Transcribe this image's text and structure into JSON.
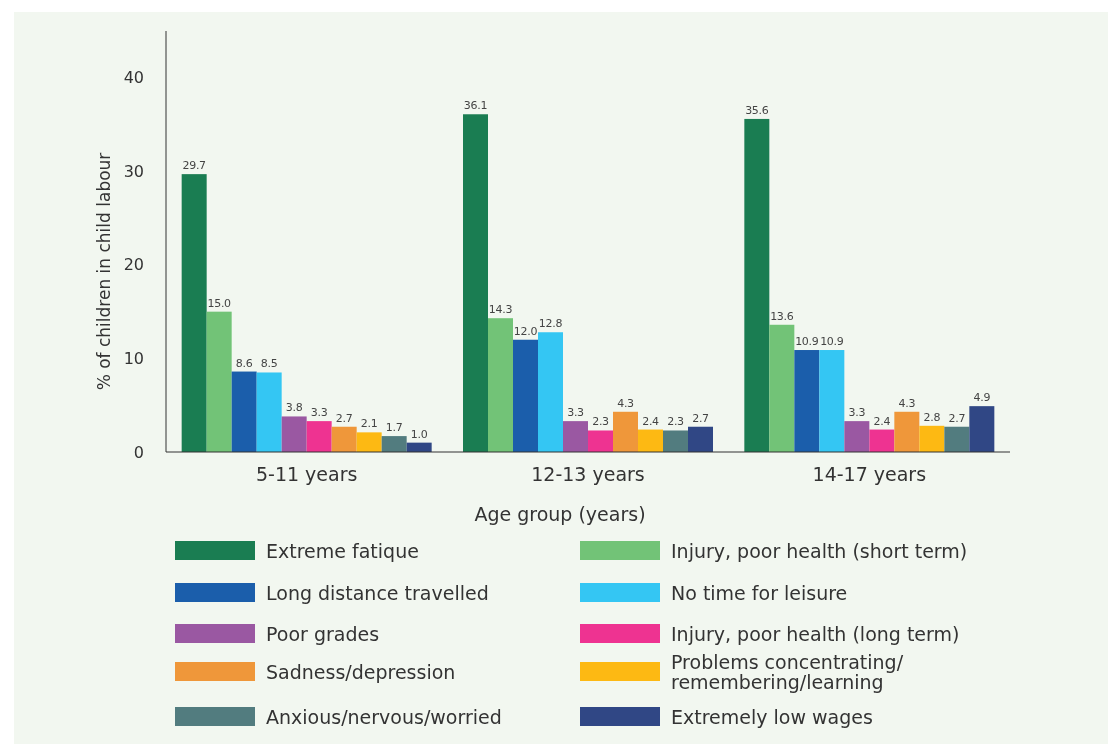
{
  "chart_data": {
    "type": "bar",
    "xlabel": "Age group (years)",
    "ylabel": "% of children in child labour",
    "categories": [
      "5-11 years",
      "12-13 years",
      "14-17 years"
    ],
    "series": [
      {
        "name": "Extreme fatique",
        "color": "#1a7d52",
        "values": [
          29.7,
          36.1,
          35.6
        ],
        "value_labels": [
          "29.7",
          "36.1",
          "35.6"
        ]
      },
      {
        "name": "Injury, poor health (short term)",
        "color": "#72c377",
        "values": [
          15,
          14.3,
          13.6
        ],
        "value_labels": [
          "15.0",
          "14.3",
          "13.6"
        ]
      },
      {
        "name": "Long distance travelled",
        "color": "#1b5eab",
        "values": [
          8.6,
          12,
          10.9
        ],
        "value_labels": [
          "8.6",
          "12.0",
          "10.9"
        ]
      },
      {
        "name": "No time for leisure",
        "color": "#34c6f3",
        "values": [
          8.5,
          12.8,
          10.9
        ],
        "value_labels": [
          "8.5",
          "12.8",
          "10.9"
        ]
      },
      {
        "name": "Poor grades",
        "color": "#9a58a2",
        "values": [
          3.8,
          3.3,
          3.3
        ],
        "value_labels": [
          "3.8",
          "3.3",
          "3.3"
        ]
      },
      {
        "name": "Injury, poor health (long term)",
        "color": "#ee3391",
        "values": [
          3.3,
          2.3,
          2.4
        ],
        "value_labels": [
          "3.3",
          "2.3",
          "2.4"
        ]
      },
      {
        "name": "Sadness/depression",
        "color": "#ef973a",
        "values": [
          2.7,
          4.3,
          4.3
        ],
        "value_labels": [
          "2.7",
          "4.3",
          "4.3"
        ]
      },
      {
        "name": "Problems concentrating/remembering/learning",
        "color": "#fdb913",
        "values": [
          2.1,
          2.4,
          2.8
        ],
        "value_labels": [
          "2.1",
          "2.4",
          "2.8"
        ]
      },
      {
        "name": "Anxious/nervous/worried",
        "color": "#527c7f",
        "values": [
          1.7,
          2.3,
          2.7
        ],
        "value_labels": [
          "1.7",
          "2.3",
          "2.7"
        ]
      },
      {
        "name": "Extremely low wages",
        "color": "#304785",
        "values": [
          1,
          2.7,
          4.9
        ],
        "value_labels": [
          "1.0",
          "2.7",
          "4.9"
        ]
      }
    ],
    "ylim": [
      0,
      45
    ],
    "yticks": [
      0,
      10,
      20,
      30,
      40
    ],
    "legend": "bottom"
  }
}
